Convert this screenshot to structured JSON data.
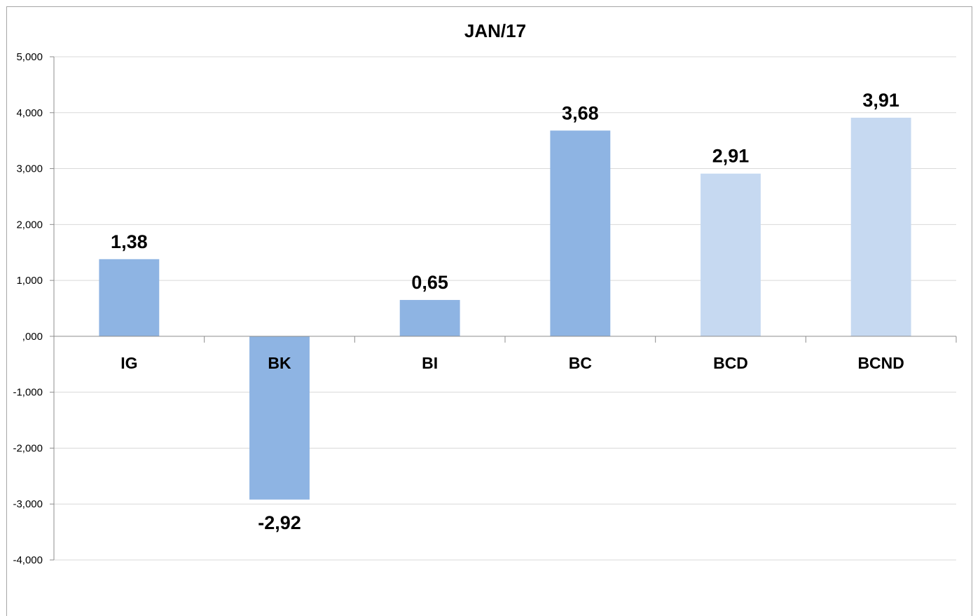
{
  "chart_data": {
    "type": "bar",
    "title": "JAN/17",
    "categories": [
      "IG",
      "BK",
      "BI",
      "BC",
      "BCD",
      "BCND"
    ],
    "values": [
      1.38,
      -2.92,
      0.65,
      3.68,
      2.91,
      3.91
    ],
    "data_labels": [
      "1,38",
      "-2,92",
      "0,65",
      "3,68",
      "2,91",
      "3,91"
    ],
    "bar_colors": [
      "#8eb4e3",
      "#8eb4e3",
      "#8eb4e3",
      "#8eb4e3",
      "#c6d9f1",
      "#c6d9f1"
    ],
    "ylim": [
      -4,
      5
    ],
    "yticks": [
      5,
      4,
      3,
      2,
      1,
      0,
      -1,
      -2,
      -3,
      -4
    ],
    "ytick_labels": [
      "5,000",
      "4,000",
      "3,000",
      "2,000",
      "1,000",
      ",000",
      "-1,000",
      "-2,000",
      "-3,000",
      "-4,000"
    ],
    "xlabel": "",
    "ylabel": "",
    "grid": true,
    "legend": "none"
  }
}
